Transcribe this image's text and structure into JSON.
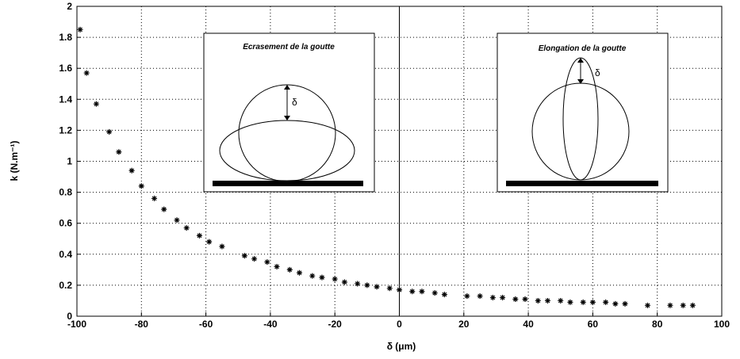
{
  "chart_data": {
    "type": "scatter",
    "x_label": "δ (μm)",
    "y_label": "k (N.m⁻¹)",
    "xlim": [
      -100,
      100
    ],
    "ylim": [
      0,
      2
    ],
    "xticks": [
      -100,
      -80,
      -60,
      -40,
      -20,
      0,
      20,
      40,
      60,
      80,
      100
    ],
    "yticks": [
      0,
      0.2,
      0.4,
      0.6,
      0.8,
      1,
      1.2,
      1.4,
      1.6,
      1.8,
      2
    ],
    "grid": true,
    "x_zero_line": true,
    "color": "#000000",
    "x": [
      -99,
      -97,
      -94,
      -90,
      -87,
      -83,
      -80,
      -76,
      -73,
      -69,
      -66,
      -62,
      -59,
      -55,
      -48,
      -45,
      -41,
      -38,
      -34,
      -31,
      -27,
      -24,
      -20,
      -17,
      -13,
      -10,
      -7,
      -3,
      0,
      4,
      7,
      11,
      14,
      21,
      25,
      29,
      32,
      36,
      39,
      43,
      46,
      50,
      53,
      57,
      60,
      64,
      67,
      70,
      77,
      84,
      88,
      91
    ],
    "values": [
      1.85,
      1.57,
      1.37,
      1.19,
      1.06,
      0.94,
      0.84,
      0.76,
      0.69,
      0.62,
      0.57,
      0.52,
      0.48,
      0.45,
      0.39,
      0.37,
      0.35,
      0.32,
      0.3,
      0.28,
      0.26,
      0.25,
      0.24,
      0.22,
      0.21,
      0.2,
      0.19,
      0.18,
      0.17,
      0.16,
      0.16,
      0.15,
      0.14,
      0.13,
      0.13,
      0.12,
      0.12,
      0.11,
      0.11,
      0.1,
      0.1,
      0.1,
      0.09,
      0.09,
      0.09,
      0.09,
      0.08,
      0.08,
      0.07,
      0.07,
      0.07,
      0.07
    ],
    "insets": [
      {
        "title": "Ecrasement de la goutte",
        "label": "δ"
      },
      {
        "title": "Elongation de la goutte",
        "label": "δ"
      }
    ]
  }
}
